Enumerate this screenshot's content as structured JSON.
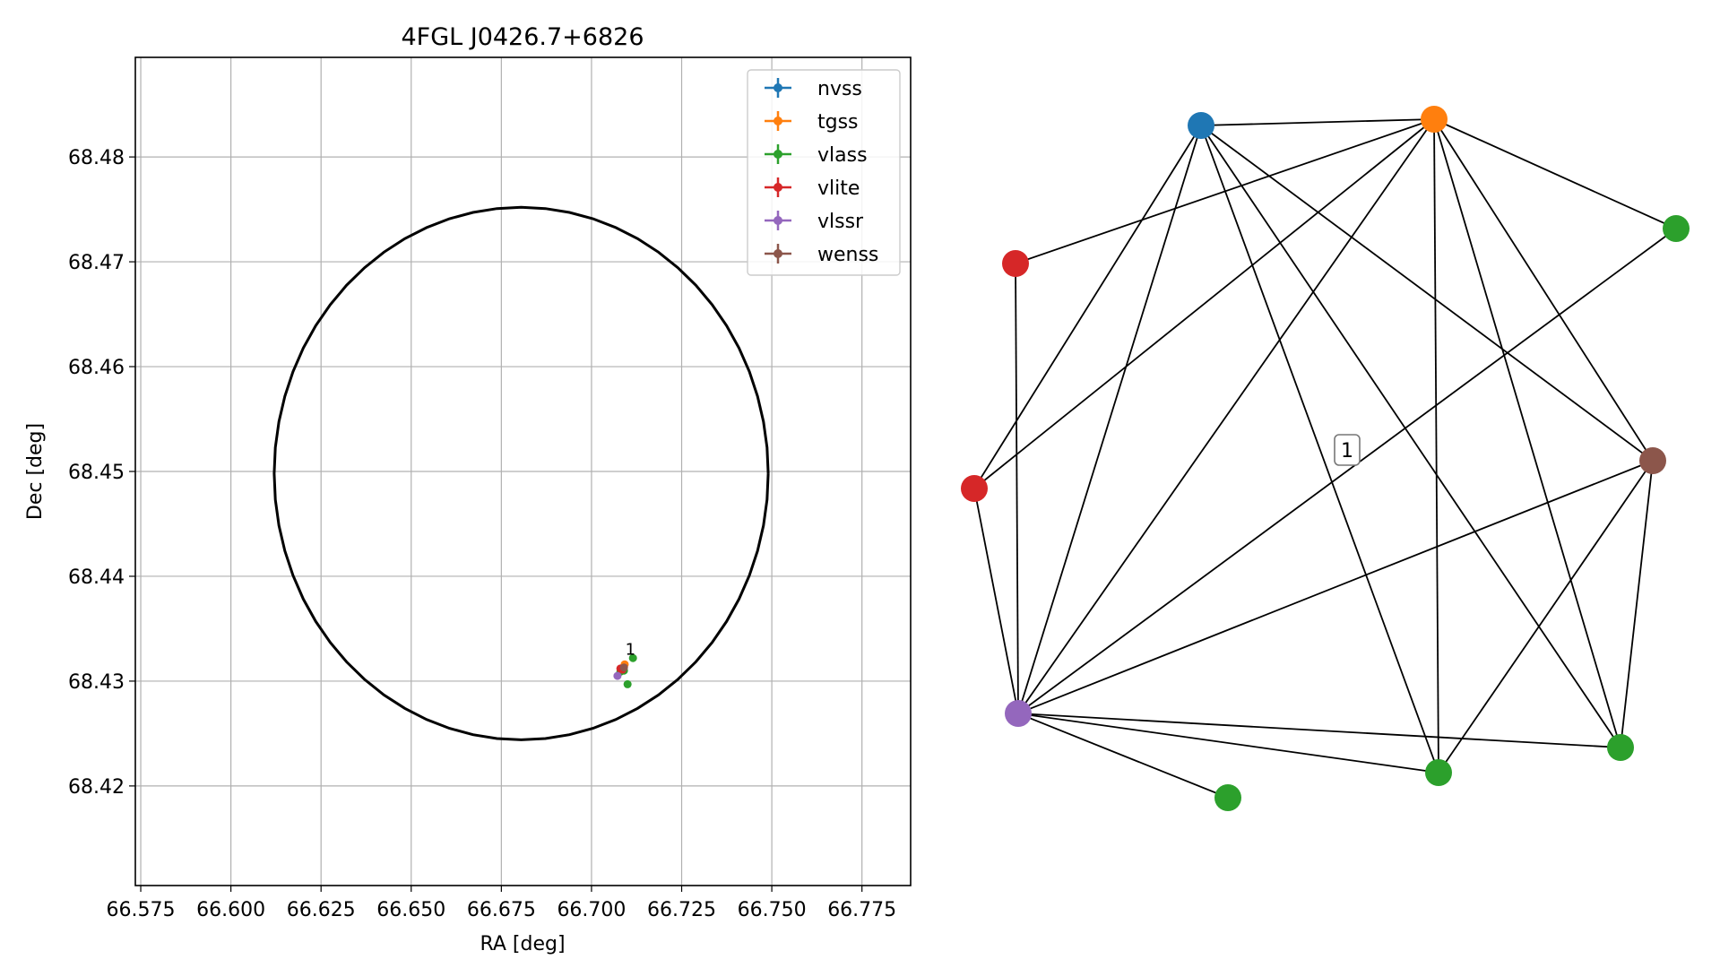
{
  "chart_data": [
    {
      "type": "scatter",
      "title": "4FGL J0426.7+6826",
      "xlabel": "RA [deg]",
      "ylabel": "Dec [deg]",
      "xlim": [
        66.5735,
        66.7885
      ],
      "ylim": [
        68.4105,
        68.4895
      ],
      "xticks": [
        66.575,
        66.6,
        66.625,
        66.65,
        66.675,
        66.7,
        66.725,
        66.75,
        66.775
      ],
      "xtick_labels": [
        "66.575",
        "66.600",
        "66.625",
        "66.650",
        "66.675",
        "66.700",
        "66.725",
        "66.750",
        "66.775"
      ],
      "yticks": [
        68.42,
        68.43,
        68.44,
        68.45,
        68.46,
        68.47,
        68.48
      ],
      "ytick_labels": [
        "68.42",
        "68.43",
        "68.44",
        "68.45",
        "68.46",
        "68.47",
        "68.48"
      ],
      "grid": true,
      "legend_position": "top-right",
      "ellipse": {
        "center": [
          66.6805,
          68.4498
        ],
        "semi_axis_ra": 0.0685,
        "semi_axis_dec": 0.0254
      },
      "series": [
        {
          "name": "nvss",
          "color": "#1f77b4",
          "points": [
            [
              66.7088,
              68.4313
            ]
          ]
        },
        {
          "name": "tgss",
          "color": "#ff7f0e",
          "points": [
            [
              66.7092,
              68.4316
            ]
          ]
        },
        {
          "name": "vlass",
          "color": "#2ca02c",
          "points": [
            [
              66.7115,
              68.4322
            ],
            [
              66.71,
              68.4297
            ],
            [
              66.7085,
              68.4311
            ],
            [
              66.708,
              68.4309
            ],
            [
              66.709,
              68.431
            ],
            [
              66.7087,
              68.4312
            ]
          ]
        },
        {
          "name": "vlite",
          "color": "#d62728",
          "points": [
            [
              66.708,
              68.4312
            ],
            [
              66.7086,
              68.4311
            ]
          ]
        },
        {
          "name": "vlssr",
          "color": "#9467bd",
          "points": [
            [
              66.7072,
              68.4305
            ]
          ]
        },
        {
          "name": "wenss",
          "color": "#8c564b",
          "points": [
            [
              66.709,
              68.4313
            ]
          ]
        }
      ],
      "annotations": [
        {
          "text": "1",
          "x": 66.7108,
          "y": 68.4325
        }
      ]
    },
    {
      "type": "network",
      "edge_label": "1",
      "nodes": [
        {
          "id": "nvss",
          "color": "#1f77b4"
        },
        {
          "id": "tgss",
          "color": "#ff7f0e"
        },
        {
          "id": "vlass_a",
          "color": "#2ca02c"
        },
        {
          "id": "vlite_a",
          "color": "#d62728"
        },
        {
          "id": "vlite_b",
          "color": "#d62728"
        },
        {
          "id": "wenss",
          "color": "#8c564b"
        },
        {
          "id": "vlssr",
          "color": "#9467bd"
        },
        {
          "id": "vlass_b",
          "color": "#2ca02c"
        },
        {
          "id": "vlass_c",
          "color": "#2ca02c"
        },
        {
          "id": "vlass_d",
          "color": "#2ca02c"
        },
        {
          "id": "vlass_e",
          "color": "#2ca02c"
        }
      ],
      "edges": [
        [
          "nvss",
          "tgss"
        ],
        [
          "nvss",
          "vlite_b"
        ],
        [
          "nvss",
          "vlssr"
        ],
        [
          "nvss",
          "wenss"
        ],
        [
          "nvss",
          "vlass_d"
        ],
        [
          "nvss",
          "vlass_c"
        ],
        [
          "tgss",
          "vlite_a"
        ],
        [
          "tgss",
          "vlite_b"
        ],
        [
          "tgss",
          "vlass_a"
        ],
        [
          "tgss",
          "wenss"
        ],
        [
          "tgss",
          "vlssr"
        ],
        [
          "tgss",
          "vlass_e"
        ],
        [
          "tgss",
          "vlass_d"
        ],
        [
          "tgss",
          "vlass_c"
        ],
        [
          "vlite_a",
          "vlssr"
        ],
        [
          "vlite_b",
          "vlssr"
        ],
        [
          "vlass_a",
          "vlssr"
        ],
        [
          "wenss",
          "vlssr"
        ],
        [
          "wenss",
          "vlass_c"
        ],
        [
          "wenss",
          "vlass_d"
        ],
        [
          "vlssr",
          "vlass_b"
        ],
        [
          "vlssr",
          "vlass_c"
        ],
        [
          "vlssr",
          "vlass_d"
        ]
      ]
    }
  ]
}
